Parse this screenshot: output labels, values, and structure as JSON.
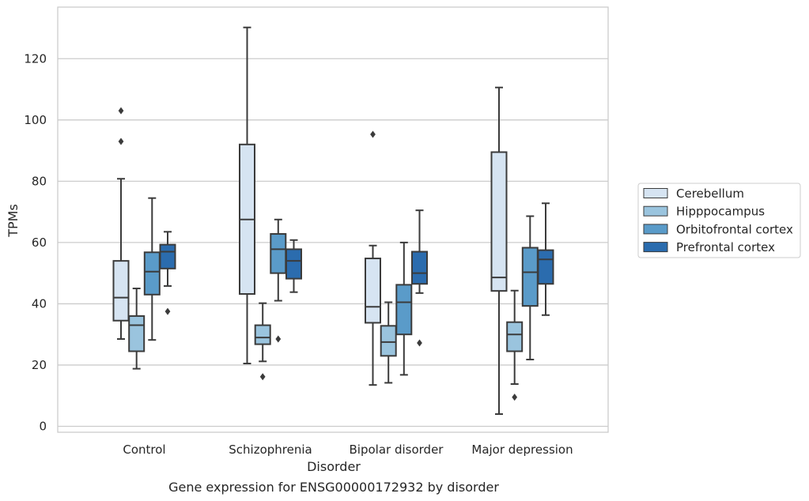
{
  "chart_data": {
    "type": "box",
    "title": "",
    "caption": "Gene expression for ENSG00000172932 by disorder",
    "xlabel": "Disorder",
    "ylabel": "TPMs",
    "ylim": [
      -2,
      135
    ],
    "yticks": [
      0,
      20,
      40,
      60,
      80,
      100,
      120
    ],
    "grid": "horizontal",
    "legend_position": "right",
    "categories": [
      "Control",
      "Schizophrenia",
      "Bipolar disorder",
      "Major depression"
    ],
    "series": [
      {
        "name": "Cerebellum",
        "color": "#d6e4f2",
        "boxes": [
          {
            "whisker_low": 28.5,
            "q1": 34.5,
            "median": 42.0,
            "q3": 54.0,
            "whisker_high": 80.8,
            "outliers": [
              93.0,
              103.0
            ]
          },
          {
            "whisker_low": 20.5,
            "q1": 43.2,
            "median": 67.5,
            "q3": 92.0,
            "whisker_high": 130.2,
            "outliers": []
          },
          {
            "whisker_low": 13.5,
            "q1": 33.8,
            "median": 39.0,
            "q3": 54.8,
            "whisker_high": 59.0,
            "outliers": [
              95.3
            ]
          },
          {
            "whisker_low": 4.0,
            "q1": 44.2,
            "median": 48.6,
            "q3": 89.5,
            "whisker_high": 110.6,
            "outliers": []
          }
        ]
      },
      {
        "name": "Hipppocampus",
        "color": "#9ac4de",
        "boxes": [
          {
            "whisker_low": 18.8,
            "q1": 24.5,
            "median": 33.0,
            "q3": 36.0,
            "whisker_high": 45.0,
            "outliers": []
          },
          {
            "whisker_low": 21.2,
            "q1": 26.8,
            "median": 29.0,
            "q3": 33.0,
            "whisker_high": 40.2,
            "outliers": [
              16.2
            ]
          },
          {
            "whisker_low": 14.2,
            "q1": 23.0,
            "median": 27.5,
            "q3": 32.8,
            "whisker_high": 40.5,
            "outliers": []
          },
          {
            "whisker_low": 13.8,
            "q1": 24.5,
            "median": 30.0,
            "q3": 34.0,
            "whisker_high": 44.3,
            "outliers": [
              9.5
            ]
          }
        ]
      },
      {
        "name": "Orbitofrontal cortex",
        "color": "#5a9bc9",
        "boxes": [
          {
            "whisker_low": 28.2,
            "q1": 43.0,
            "median": 50.5,
            "q3": 56.8,
            "whisker_high": 74.5,
            "outliers": []
          },
          {
            "whisker_low": 41.0,
            "q1": 50.0,
            "median": 57.8,
            "q3": 62.8,
            "whisker_high": 67.5,
            "outliers": [
              28.5
            ]
          },
          {
            "whisker_low": 16.8,
            "q1": 30.0,
            "median": 40.5,
            "q3": 46.2,
            "whisker_high": 60.0,
            "outliers": []
          },
          {
            "whisker_low": 21.8,
            "q1": 39.3,
            "median": 50.3,
            "q3": 58.3,
            "whisker_high": 68.6,
            "outliers": []
          }
        ]
      },
      {
        "name": "Prefrontal cortex",
        "color": "#2b6cae",
        "boxes": [
          {
            "whisker_low": 45.8,
            "q1": 51.5,
            "median": 57.0,
            "q3": 59.3,
            "whisker_high": 63.5,
            "outliers": [
              37.5
            ]
          },
          {
            "whisker_low": 43.8,
            "q1": 48.2,
            "median": 54.0,
            "q3": 57.8,
            "whisker_high": 60.8,
            "outliers": []
          },
          {
            "whisker_low": 43.5,
            "q1": 46.5,
            "median": 50.0,
            "q3": 57.0,
            "whisker_high": 70.5,
            "outliers": [
              27.2
            ]
          },
          {
            "whisker_low": 36.3,
            "q1": 46.5,
            "median": 54.5,
            "q3": 57.5,
            "whisker_high": 72.8,
            "outliers": []
          }
        ]
      }
    ]
  }
}
